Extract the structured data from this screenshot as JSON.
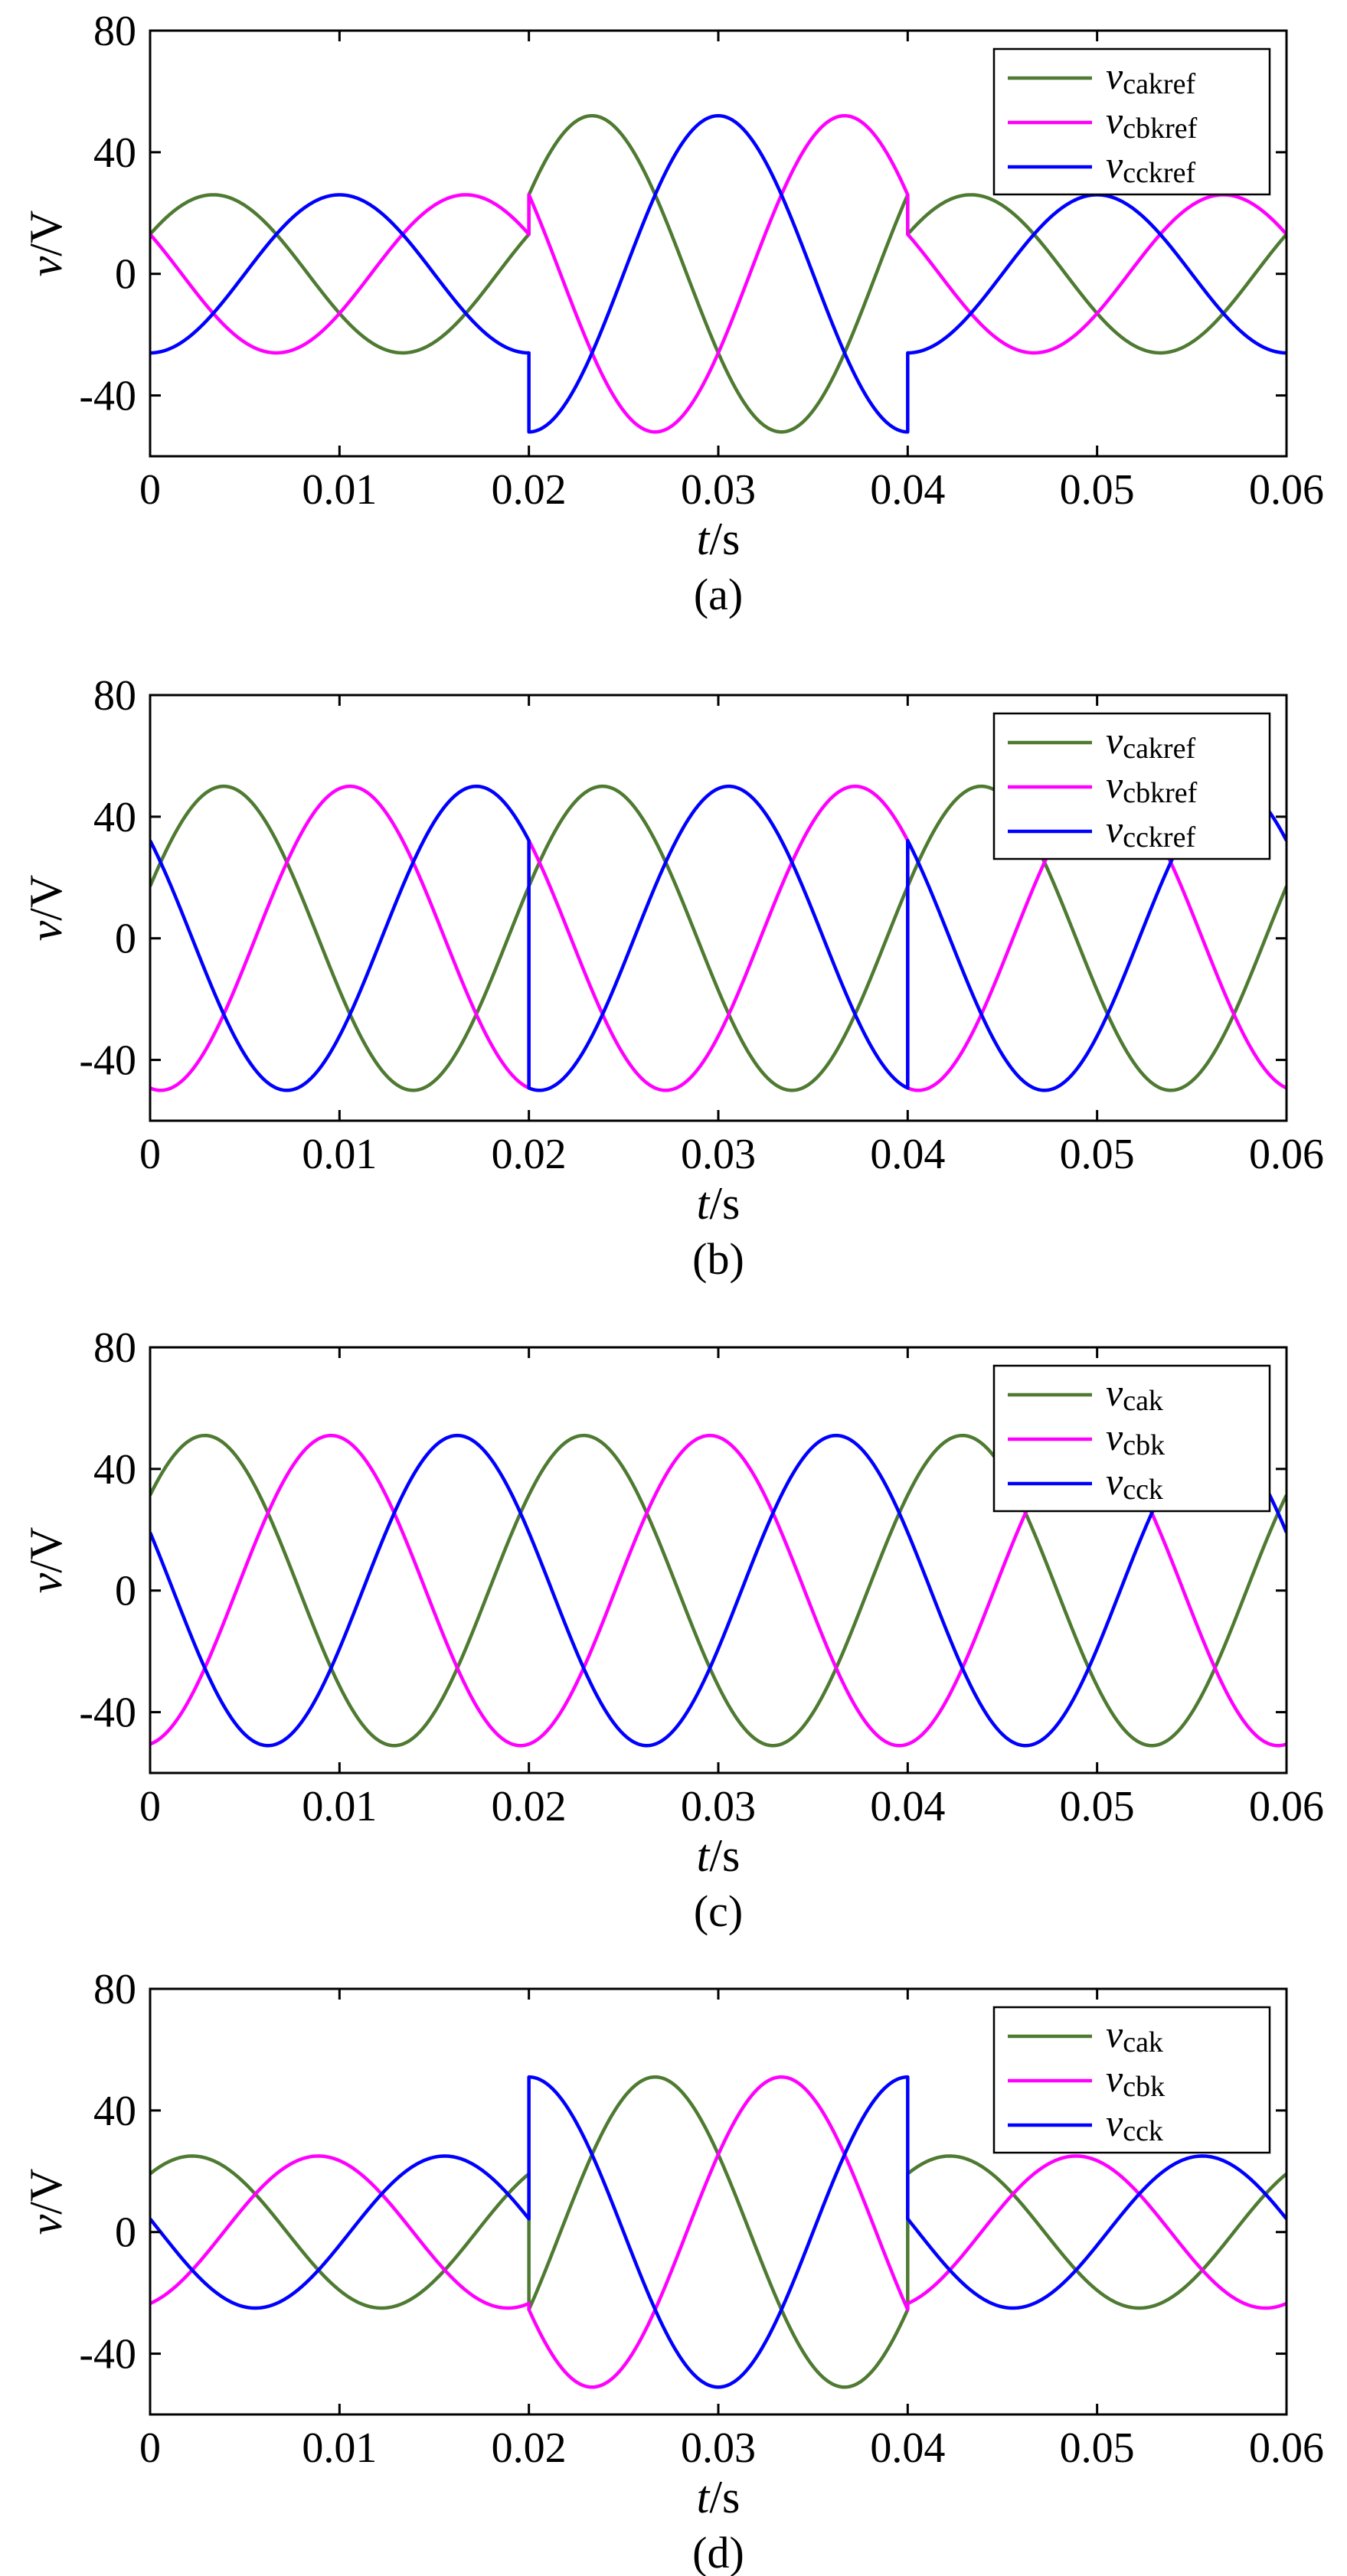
{
  "chart_data": [
    {
      "type": "line",
      "panel_label": "(a)",
      "xlabel": {
        "var": "t",
        "unit": "/s"
      },
      "ylabel": {
        "var": "v",
        "unit": "/V"
      },
      "xlim": [
        0,
        0.06
      ],
      "ylim": [
        -60,
        80
      ],
      "xticks": [
        "0",
        "0.01",
        "0.02",
        "0.03",
        "0.04",
        "0.05",
        "0.06"
      ],
      "yticks": [
        80,
        40,
        0,
        -40
      ],
      "legend": "top-right",
      "series": [
        {
          "label_main": "v",
          "label_sub": "cakref",
          "color": "#4e7a31",
          "segments": [
            {
              "t": [
                0,
                0.02
              ],
              "amp": 26,
              "phi0": 30
            },
            {
              "t": [
                0.02,
                0.04
              ],
              "amp": 52,
              "phi0": 30
            },
            {
              "t": [
                0.04,
                0.06
              ],
              "amp": 26,
              "phi0": 30
            }
          ]
        },
        {
          "label_main": "v",
          "label_sub": "cbkref",
          "color": "#ff00ff",
          "segments": [
            {
              "t": [
                0,
                0.02
              ],
              "amp": 26,
              "phi0": 150
            },
            {
              "t": [
                0.02,
                0.04
              ],
              "amp": 52,
              "phi0": 150
            },
            {
              "t": [
                0.04,
                0.06
              ],
              "amp": 26,
              "phi0": 150
            }
          ]
        },
        {
          "label_main": "v",
          "label_sub": "cckref",
          "color": "#0000ff",
          "segments": [
            {
              "t": [
                0,
                0.02
              ],
              "amp": 26,
              "phi0": -90
            },
            {
              "t": [
                0.02,
                0.04
              ],
              "amp": 52,
              "phi0": -90
            },
            {
              "t": [
                0.04,
                0.06
              ],
              "amp": 26,
              "phi0": -90
            }
          ]
        }
      ]
    },
    {
      "type": "line",
      "panel_label": "(b)",
      "xlabel": {
        "var": "t",
        "unit": "/s"
      },
      "ylabel": {
        "var": "v",
        "unit": "/V"
      },
      "xlim": [
        0,
        0.06
      ],
      "ylim": [
        -60,
        80
      ],
      "xticks": [
        "0",
        "0.01",
        "0.02",
        "0.03",
        "0.04",
        "0.05",
        "0.06"
      ],
      "yticks": [
        80,
        40,
        0,
        -40
      ],
      "legend": "top-right",
      "series": [
        {
          "label_main": "v",
          "label_sub": "cakref",
          "color": "#4e7a31",
          "segments": [
            {
              "t": [
                0,
                0.02
              ],
              "amp": 50,
              "phi0": 20
            },
            {
              "t": [
                0.02,
                0.04
              ],
              "amp": 50,
              "phi0": 20
            },
            {
              "t": [
                0.04,
                0.06
              ],
              "amp": 50,
              "phi0": 20
            }
          ]
        },
        {
          "label_main": "v",
          "label_sub": "cbkref",
          "color": "#ff00ff",
          "segments": [
            {
              "t": [
                0,
                0.02
              ],
              "amp": 50,
              "phi0": -100
            },
            {
              "t": [
                0.02,
                0.04
              ],
              "amp": 50,
              "phi0": 140
            },
            {
              "t": [
                0.04,
                0.06
              ],
              "amp": 50,
              "phi0": -100
            }
          ]
        },
        {
          "label_main": "v",
          "label_sub": "cckref",
          "color": "#0000ff",
          "segments": [
            {
              "t": [
                0,
                0.02
              ],
              "amp": 50,
              "phi0": 140
            },
            {
              "t": [
                0.02,
                0.04
              ],
              "amp": 50,
              "phi0": -100
            },
            {
              "t": [
                0.04,
                0.06
              ],
              "amp": 50,
              "phi0": 140
            }
          ]
        }
      ]
    },
    {
      "type": "line",
      "panel_label": "(c)",
      "xlabel": {
        "var": "t",
        "unit": "/s"
      },
      "ylabel": {
        "var": "v",
        "unit": "/V"
      },
      "xlim": [
        0,
        0.06
      ],
      "ylim": [
        -60,
        80
      ],
      "xticks": [
        "0",
        "0.01",
        "0.02",
        "0.03",
        "0.04",
        "0.05",
        "0.06"
      ],
      "yticks": [
        80,
        40,
        0,
        -40
      ],
      "legend": "top-right",
      "series": [
        {
          "label_main": "v",
          "label_sub": "cak",
          "color": "#4e7a31",
          "segments": [
            {
              "t": [
                0,
                0.02
              ],
              "amp": 51,
              "phi0": 38
            },
            {
              "t": [
                0.02,
                0.04
              ],
              "amp": 51,
              "phi0": 38
            },
            {
              "t": [
                0.04,
                0.06
              ],
              "amp": 51,
              "phi0": 38
            }
          ]
        },
        {
          "label_main": "v",
          "label_sub": "cbk",
          "color": "#ff00ff",
          "segments": [
            {
              "t": [
                0,
                0.02
              ],
              "amp": 51,
              "phi0": -82
            },
            {
              "t": [
                0.02,
                0.04
              ],
              "amp": 51,
              "phi0": -82
            },
            {
              "t": [
                0.04,
                0.06
              ],
              "amp": 51,
              "phi0": -82
            }
          ]
        },
        {
          "label_main": "v",
          "label_sub": "cck",
          "color": "#0000ff",
          "segments": [
            {
              "t": [
                0,
                0.02
              ],
              "amp": 51,
              "phi0": 158
            },
            {
              "t": [
                0.02,
                0.04
              ],
              "amp": 51,
              "phi0": 158
            },
            {
              "t": [
                0.04,
                0.06
              ],
              "amp": 51,
              "phi0": 158
            }
          ]
        }
      ]
    },
    {
      "type": "line",
      "panel_label": "(d)",
      "xlabel": {
        "var": "t",
        "unit": "/s"
      },
      "ylabel": {
        "var": "v",
        "unit": "/V"
      },
      "xlim": [
        0,
        0.06
      ],
      "ylim": [
        -60,
        80
      ],
      "xticks": [
        "0",
        "0.01",
        "0.02",
        "0.03",
        "0.04",
        "0.05",
        "0.06"
      ],
      "yticks": [
        80,
        40,
        0,
        -40
      ],
      "legend": "top-right",
      "series": [
        {
          "label_main": "v",
          "label_sub": "cak",
          "color": "#4e7a31",
          "segments": [
            {
              "t": [
                0,
                0.02
              ],
              "amp": 25,
              "phi0": 50
            },
            {
              "t": [
                0.02,
                0.04
              ],
              "amp": 51,
              "phi0": -30
            },
            {
              "t": [
                0.04,
                0.06
              ],
              "amp": 25,
              "phi0": 50
            }
          ]
        },
        {
          "label_main": "v",
          "label_sub": "cbk",
          "color": "#ff00ff",
          "segments": [
            {
              "t": [
                0,
                0.02
              ],
              "amp": 25,
              "phi0": -70
            },
            {
              "t": [
                0.02,
                0.04
              ],
              "amp": 51,
              "phi0": -150
            },
            {
              "t": [
                0.04,
                0.06
              ],
              "amp": 25,
              "phi0": -70
            }
          ]
        },
        {
          "label_main": "v",
          "label_sub": "cck",
          "color": "#0000ff",
          "segments": [
            {
              "t": [
                0,
                0.02
              ],
              "amp": 25,
              "phi0": 170
            },
            {
              "t": [
                0.02,
                0.04
              ],
              "amp": 51,
              "phi0": 90
            },
            {
              "t": [
                0.04,
                0.06
              ],
              "amp": 25,
              "phi0": 170
            }
          ]
        }
      ]
    }
  ]
}
